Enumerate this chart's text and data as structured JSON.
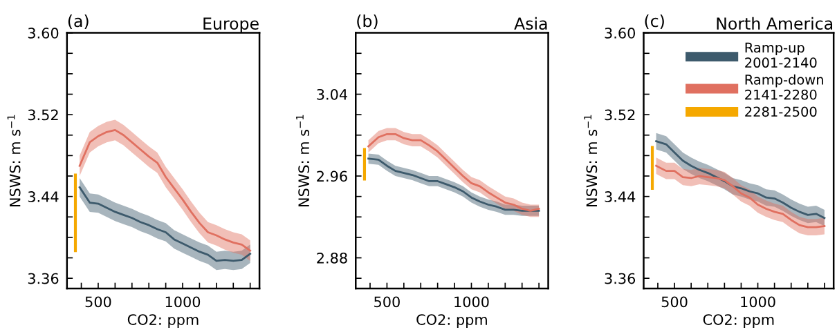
{
  "chart_data": [
    {
      "type": "line",
      "title": "Europe",
      "annotations": [
        "(a)"
      ],
      "xlabel": "CO2: ppm",
      "ylabel": "NSWS: m s$^{−1}$",
      "xlim": [
        315,
        1455
      ],
      "ylim": [
        3.35,
        3.6
      ],
      "xticks": [
        {
          "value": 400,
          "label": null
        },
        {
          "value": 500,
          "label": "500"
        },
        {
          "value": 600,
          "label": null
        },
        {
          "value": 700,
          "label": null
        },
        {
          "value": 800,
          "label": null
        },
        {
          "value": 900,
          "label": null
        },
        {
          "value": 1000,
          "label": "1000"
        },
        {
          "value": 1100,
          "label": null
        },
        {
          "value": 1200,
          "label": null
        },
        {
          "value": 1300,
          "label": null
        },
        {
          "value": 1400,
          "label": null
        }
      ],
      "yticks": [
        {
          "value": 3.36,
          "label": "3.36"
        },
        {
          "value": 3.38,
          "label": null
        },
        {
          "value": 3.4,
          "label": null
        },
        {
          "value": 3.42,
          "label": null
        },
        {
          "value": 3.44,
          "label": "3.44"
        },
        {
          "value": 3.46,
          "label": null
        },
        {
          "value": 3.48,
          "label": null
        },
        {
          "value": 3.5,
          "label": null
        },
        {
          "value": 3.52,
          "label": "3.52"
        },
        {
          "value": 3.54,
          "label": null
        },
        {
          "value": 3.56,
          "label": null
        },
        {
          "value": 3.58,
          "label": null
        },
        {
          "value": 3.6,
          "label": "3.60"
        }
      ],
      "grid": false,
      "legend": false,
      "series": [
        {
          "color": "#3d5a6c",
          "x": [
            390,
            450,
            500,
            550,
            600,
            650,
            700,
            750,
            800,
            850,
            900,
            950,
            1000,
            1050,
            1100,
            1150,
            1200,
            1250,
            1300,
            1350,
            1400
          ],
          "values": [
            3.449,
            3.434,
            3.433,
            3.429,
            3.425,
            3.422,
            3.419,
            3.415,
            3.412,
            3.408,
            3.405,
            3.398,
            3.394,
            3.39,
            3.386,
            3.383,
            3.377,
            3.378,
            3.377,
            3.378,
            3.384
          ],
          "lower": [
            3.44,
            3.425,
            3.424,
            3.42,
            3.416,
            3.413,
            3.41,
            3.406,
            3.403,
            3.399,
            3.396,
            3.389,
            3.385,
            3.381,
            3.377,
            3.374,
            3.368,
            3.369,
            3.368,
            3.369,
            3.375
          ],
          "upper": [
            3.458,
            3.443,
            3.442,
            3.438,
            3.434,
            3.431,
            3.428,
            3.424,
            3.421,
            3.417,
            3.414,
            3.407,
            3.403,
            3.399,
            3.395,
            3.392,
            3.386,
            3.387,
            3.386,
            3.387,
            3.393
          ]
        },
        {
          "color": "#e07060",
          "x": [
            390,
            450,
            500,
            550,
            600,
            650,
            700,
            750,
            800,
            850,
            900,
            950,
            1000,
            1050,
            1100,
            1150,
            1200,
            1250,
            1300,
            1350,
            1400
          ],
          "values": [
            3.47,
            3.493,
            3.499,
            3.503,
            3.505,
            3.5,
            3.493,
            3.486,
            3.479,
            3.473,
            3.459,
            3.448,
            3.437,
            3.425,
            3.414,
            3.405,
            3.402,
            3.398,
            3.395,
            3.393,
            3.387
          ],
          "lower": [
            3.46,
            3.483,
            3.489,
            3.493,
            3.495,
            3.49,
            3.483,
            3.476,
            3.469,
            3.463,
            3.449,
            3.438,
            3.427,
            3.415,
            3.404,
            3.395,
            3.392,
            3.388,
            3.385,
            3.383,
            3.377
          ],
          "upper": [
            3.48,
            3.503,
            3.509,
            3.513,
            3.515,
            3.51,
            3.503,
            3.496,
            3.489,
            3.483,
            3.469,
            3.458,
            3.447,
            3.435,
            3.424,
            3.415,
            3.412,
            3.408,
            3.405,
            3.403,
            3.397
          ]
        },
        {
          "color": "#f5a800",
          "x": [
            365,
            365
          ],
          "values": [
            3.387,
            3.461
          ]
        }
      ]
    },
    {
      "type": "line",
      "title": "Asia",
      "annotations": [
        "(b)"
      ],
      "xlabel": "CO2: ppm",
      "ylabel": "NSWS: m s$^{−1}$",
      "xlim": [
        315,
        1455
      ],
      "ylim": [
        2.85,
        3.1
      ],
      "xticks": [
        {
          "value": 400,
          "label": null
        },
        {
          "value": 500,
          "label": "500"
        },
        {
          "value": 600,
          "label": null
        },
        {
          "value": 700,
          "label": null
        },
        {
          "value": 800,
          "label": null
        },
        {
          "value": 900,
          "label": null
        },
        {
          "value": 1000,
          "label": "1000"
        },
        {
          "value": 1100,
          "label": null
        },
        {
          "value": 1200,
          "label": null
        },
        {
          "value": 1300,
          "label": null
        },
        {
          "value": 1400,
          "label": null
        }
      ],
      "yticks": [
        {
          "value": 2.86,
          "label": null
        },
        {
          "value": 2.88,
          "label": "2.88"
        },
        {
          "value": 2.9,
          "label": null
        },
        {
          "value": 2.92,
          "label": null
        },
        {
          "value": 2.94,
          "label": null
        },
        {
          "value": 2.96,
          "label": "2.96"
        },
        {
          "value": 2.98,
          "label": null
        },
        {
          "value": 3.0,
          "label": null
        },
        {
          "value": 3.02,
          "label": null
        },
        {
          "value": 3.04,
          "label": "3.04"
        },
        {
          "value": 3.06,
          "label": null
        },
        {
          "value": 3.08,
          "label": null
        }
      ],
      "grid": false,
      "legend": false,
      "series": [
        {
          "color": "#3d5a6c",
          "x": [
            390,
            450,
            500,
            550,
            600,
            650,
            700,
            750,
            800,
            850,
            900,
            950,
            1000,
            1050,
            1100,
            1150,
            1200,
            1250,
            1300,
            1350,
            1400
          ],
          "values": [
            2.977,
            2.976,
            2.97,
            2.965,
            2.963,
            2.961,
            2.958,
            2.955,
            2.955,
            2.952,
            2.949,
            2.945,
            2.939,
            2.935,
            2.932,
            2.93,
            2.927,
            2.927,
            2.926,
            2.926,
            2.926
          ],
          "lower": [
            2.972,
            2.971,
            2.965,
            2.96,
            2.958,
            2.956,
            2.953,
            2.95,
            2.95,
            2.947,
            2.944,
            2.94,
            2.934,
            2.93,
            2.927,
            2.925,
            2.922,
            2.922,
            2.921,
            2.921,
            2.921
          ],
          "upper": [
            2.982,
            2.981,
            2.975,
            2.97,
            2.968,
            2.966,
            2.963,
            2.96,
            2.96,
            2.957,
            2.954,
            2.95,
            2.944,
            2.94,
            2.937,
            2.935,
            2.932,
            2.932,
            2.931,
            2.931,
            2.931
          ]
        },
        {
          "color": "#e07060",
          "x": [
            390,
            450,
            500,
            550,
            600,
            650,
            700,
            750,
            800,
            850,
            900,
            950,
            1000,
            1050,
            1100,
            1150,
            1200,
            1250,
            1300,
            1350,
            1400
          ],
          "values": [
            2.989,
            2.998,
            3.001,
            3.001,
            2.997,
            2.995,
            2.995,
            2.99,
            2.984,
            2.976,
            2.968,
            2.96,
            2.953,
            2.95,
            2.944,
            2.939,
            2.934,
            2.932,
            2.928,
            2.926,
            2.928
          ],
          "lower": [
            2.983,
            2.992,
            2.995,
            2.995,
            2.991,
            2.989,
            2.989,
            2.984,
            2.978,
            2.97,
            2.962,
            2.954,
            2.947,
            2.944,
            2.938,
            2.933,
            2.928,
            2.926,
            2.922,
            2.92,
            2.92
          ],
          "upper": [
            2.995,
            3.004,
            3.007,
            3.007,
            3.003,
            3.001,
            3.001,
            2.996,
            2.99,
            2.982,
            2.974,
            2.966,
            2.959,
            2.956,
            2.95,
            2.945,
            2.94,
            2.938,
            2.934,
            2.932,
            2.932
          ]
        },
        {
          "color": "#f5a800",
          "x": [
            367,
            367
          ],
          "values": [
            2.957,
            2.986
          ]
        }
      ]
    },
    {
      "type": "line",
      "title": "North America",
      "annotations": [
        "(c)"
      ],
      "xlabel": "CO2: ppm",
      "ylabel": "NSWS: m s$^{−1}$",
      "xlim": [
        315,
        1455
      ],
      "ylim": [
        3.35,
        3.6
      ],
      "xticks": [
        {
          "value": 400,
          "label": null
        },
        {
          "value": 500,
          "label": "500"
        },
        {
          "value": 600,
          "label": null
        },
        {
          "value": 700,
          "label": null
        },
        {
          "value": 800,
          "label": null
        },
        {
          "value": 900,
          "label": null
        },
        {
          "value": 1000,
          "label": "1000"
        },
        {
          "value": 1100,
          "label": null
        },
        {
          "value": 1200,
          "label": null
        },
        {
          "value": 1300,
          "label": null
        },
        {
          "value": 1400,
          "label": null
        }
      ],
      "yticks": [
        {
          "value": 3.36,
          "label": "3.36"
        },
        {
          "value": 3.38,
          "label": null
        },
        {
          "value": 3.4,
          "label": null
        },
        {
          "value": 3.42,
          "label": null
        },
        {
          "value": 3.44,
          "label": "3.44"
        },
        {
          "value": 3.46,
          "label": null
        },
        {
          "value": 3.48,
          "label": null
        },
        {
          "value": 3.5,
          "label": null
        },
        {
          "value": 3.52,
          "label": "3.52"
        },
        {
          "value": 3.54,
          "label": null
        },
        {
          "value": 3.56,
          "label": null
        },
        {
          "value": 3.58,
          "label": null
        },
        {
          "value": 3.6,
          "label": "3.60"
        }
      ],
      "grid": false,
      "legend": "top right",
      "series": [
        {
          "name": "Ramp-up\n2001-2140",
          "color": "#3d5a6c",
          "x": [
            390,
            450,
            500,
            550,
            600,
            650,
            700,
            750,
            800,
            850,
            900,
            950,
            1000,
            1050,
            1100,
            1150,
            1200,
            1250,
            1300,
            1350,
            1400
          ],
          "values": [
            3.494,
            3.491,
            3.483,
            3.475,
            3.47,
            3.466,
            3.463,
            3.459,
            3.455,
            3.45,
            3.448,
            3.445,
            3.443,
            3.439,
            3.438,
            3.434,
            3.429,
            3.425,
            3.422,
            3.423,
            3.419
          ],
          "lower": [
            3.486,
            3.483,
            3.475,
            3.467,
            3.462,
            3.458,
            3.455,
            3.451,
            3.447,
            3.442,
            3.44,
            3.437,
            3.435,
            3.431,
            3.43,
            3.426,
            3.421,
            3.417,
            3.414,
            3.415,
            3.411
          ],
          "upper": [
            3.502,
            3.499,
            3.491,
            3.483,
            3.478,
            3.474,
            3.471,
            3.467,
            3.463,
            3.458,
            3.456,
            3.453,
            3.451,
            3.447,
            3.446,
            3.442,
            3.437,
            3.433,
            3.43,
            3.431,
            3.427
          ]
        },
        {
          "name": "Ramp-down\n2141-2280",
          "color": "#e07060",
          "x": [
            390,
            450,
            500,
            550,
            600,
            650,
            700,
            750,
            800,
            850,
            900,
            950,
            1000,
            1050,
            1100,
            1150,
            1200,
            1250,
            1300,
            1350,
            1400
          ],
          "values": [
            3.47,
            3.465,
            3.465,
            3.459,
            3.458,
            3.46,
            3.459,
            3.458,
            3.456,
            3.45,
            3.443,
            3.439,
            3.432,
            3.428,
            3.425,
            3.423,
            3.417,
            3.412,
            3.41,
            3.41,
            3.411
          ],
          "lower": [
            3.462,
            3.457,
            3.457,
            3.451,
            3.45,
            3.452,
            3.451,
            3.45,
            3.448,
            3.442,
            3.435,
            3.431,
            3.424,
            3.42,
            3.417,
            3.415,
            3.409,
            3.404,
            3.402,
            3.402,
            3.403
          ],
          "upper": [
            3.478,
            3.473,
            3.473,
            3.467,
            3.466,
            3.468,
            3.467,
            3.466,
            3.464,
            3.458,
            3.451,
            3.447,
            3.44,
            3.436,
            3.433,
            3.431,
            3.425,
            3.42,
            3.418,
            3.418,
            3.419
          ]
        },
        {
          "name": "2281-2500",
          "color": "#f5a800",
          "x": [
            367,
            367
          ],
          "values": [
            3.448,
            3.488
          ]
        }
      ]
    }
  ]
}
